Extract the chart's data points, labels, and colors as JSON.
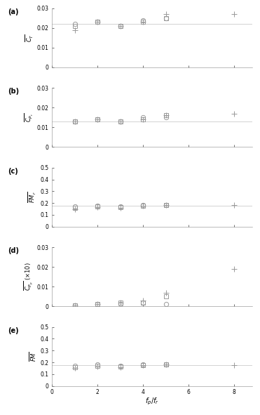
{
  "x_circle": [
    1,
    2,
    3,
    4,
    5
  ],
  "x_square": [
    1,
    2,
    3,
    4,
    5
  ],
  "x_plus": [
    1,
    2,
    3,
    4,
    5,
    8
  ],
  "CT_circle": [
    0.022,
    0.023,
    0.021,
    0.024,
    0.025
  ],
  "CT_square": [
    0.021,
    0.023,
    0.021,
    0.023,
    0.025
  ],
  "CT_plus": [
    0.019,
    0.023,
    0.021,
    0.023,
    0.027,
    0.027
  ],
  "CPr_circle": [
    0.013,
    0.014,
    0.013,
    0.015,
    0.015
  ],
  "CPr_square": [
    0.013,
    0.014,
    0.013,
    0.014,
    0.016
  ],
  "CPr_plus": [
    0.013,
    0.014,
    0.013,
    0.014,
    0.016,
    0.017
  ],
  "FMr_circle": [
    0.17,
    0.175,
    0.17,
    0.185,
    0.185
  ],
  "FMr_square": [
    0.16,
    0.17,
    0.165,
    0.175,
    0.18
  ],
  "FMr_plus": [
    0.15,
    0.165,
    0.16,
    0.175,
    0.18,
    0.185
  ],
  "CPp_circle": [
    0.0005,
    0.001,
    0.001,
    0.002,
    0.001
  ],
  "CPp_square": [
    0.0005,
    0.001,
    0.002,
    0.002,
    0.005
  ],
  "CPp_plus": [
    0.0005,
    0.001,
    0.002,
    0.003,
    0.007,
    0.019
  ],
  "FM_circle": [
    0.17,
    0.18,
    0.17,
    0.185,
    0.185
  ],
  "FM_square": [
    0.16,
    0.17,
    0.165,
    0.175,
    0.185
  ],
  "FM_plus": [
    0.15,
    0.165,
    0.16,
    0.175,
    0.18,
    0.175
  ],
  "panel_labels": [
    "(a)",
    "(b)",
    "(c)",
    "(d)",
    "(e)"
  ],
  "ylims": [
    [
      0,
      0.03
    ],
    [
      0,
      0.03
    ],
    [
      0,
      0.5
    ],
    [
      0,
      0.03
    ],
    [
      0,
      0.5
    ]
  ],
  "yticks_ab": [
    0,
    0.01,
    0.02,
    0.03
  ],
  "yticks_ce": [
    0,
    0.1,
    0.2,
    0.3,
    0.4,
    0.5
  ],
  "xticks": [
    0,
    2,
    4,
    6,
    8
  ],
  "xlim": [
    0,
    8.8
  ],
  "marker_color": "#999999",
  "line_color": "#cccccc",
  "hlines_y": [
    0.022,
    0.013,
    0.175,
    null,
    0.175
  ],
  "xlabel": "$f_p/f_r$"
}
